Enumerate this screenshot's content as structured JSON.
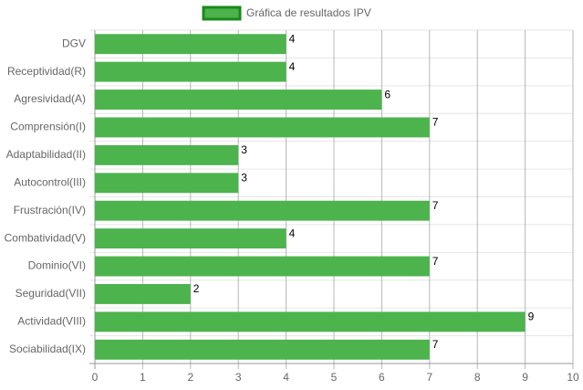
{
  "chart_data": {
    "type": "bar",
    "horizontal": true,
    "categories": [
      "DGV",
      "Receptividad(R)",
      "Agresividad(A)",
      "Comprensión(I)",
      "Adaptabilidad(II)",
      "Autocontrol(III)",
      "Frustración(IV)",
      "Combatividad(V)",
      "Dominio(VI)",
      "Seguridad(VII)",
      "Actividad(VIII)",
      "Sociabilidad(IX)"
    ],
    "series": [
      {
        "name": "Gráfica de resultados IPV",
        "color": "#4db34d",
        "border_color": "#1a8a1a",
        "values": [
          4,
          4,
          6,
          7,
          3,
          3,
          7,
          4,
          7,
          2,
          9,
          7
        ]
      }
    ],
    "xlim": [
      0,
      10
    ],
    "xticks": [
      0,
      1,
      2,
      3,
      4,
      5,
      6,
      7,
      8,
      9,
      10
    ],
    "grid": true,
    "legend": "top",
    "data_labels": true
  }
}
